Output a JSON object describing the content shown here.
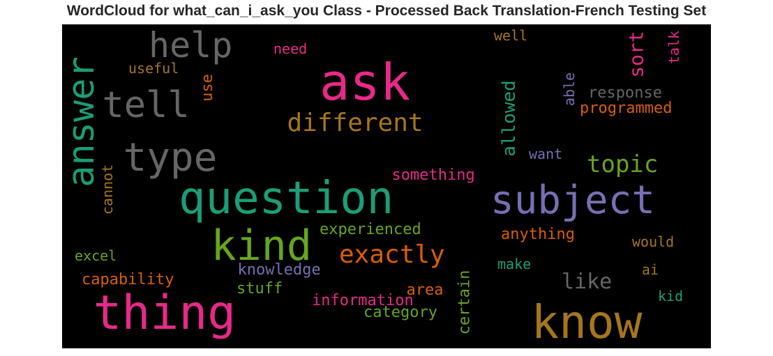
{
  "chart_data": {
    "type": "wordcloud",
    "title": "WordCloud for what_can_i_ask_you Class - Processed Back Translation-French Testing Set",
    "background": "#000000",
    "palette": "Dark2",
    "words": [
      {
        "text": "ask",
        "color": "#e7298a"
      },
      {
        "text": "question",
        "color": "#1b9e77"
      },
      {
        "text": "subject",
        "color": "#7570b3"
      },
      {
        "text": "thing",
        "color": "#e7298a"
      },
      {
        "text": "know",
        "color": "#a6761d"
      },
      {
        "text": "kind",
        "color": "#66a61e"
      },
      {
        "text": "answer",
        "color": "#1b9e77",
        "vertical": true
      },
      {
        "text": "type",
        "color": "#666666"
      },
      {
        "text": "tell",
        "color": "#666666"
      },
      {
        "text": "help",
        "color": "#666666"
      },
      {
        "text": "different",
        "color": "#a6761d"
      },
      {
        "text": "exactly",
        "color": "#d95f02"
      },
      {
        "text": "topic",
        "color": "#66a61e"
      },
      {
        "text": "like",
        "color": "#666666"
      },
      {
        "text": "allowed",
        "color": "#1b9e77",
        "vertical": true
      },
      {
        "text": "sort",
        "color": "#e7298a",
        "vertical": true
      },
      {
        "text": "certain",
        "color": "#66a61e",
        "vertical": true
      },
      {
        "text": "programmed",
        "color": "#d95f02"
      },
      {
        "text": "response",
        "color": "#666666"
      },
      {
        "text": "anything",
        "color": "#d95f02"
      },
      {
        "text": "something",
        "color": "#e7298a"
      },
      {
        "text": "experienced",
        "color": "#66a61e"
      },
      {
        "text": "knowledge",
        "color": "#7570b3"
      },
      {
        "text": "information",
        "color": "#e7298a"
      },
      {
        "text": "capability",
        "color": "#d95f02"
      },
      {
        "text": "category",
        "color": "#66a61e"
      },
      {
        "text": "use",
        "color": "#d95f02",
        "vertical": true
      },
      {
        "text": "useful",
        "color": "#a6761d"
      },
      {
        "text": "need",
        "color": "#e7298a"
      },
      {
        "text": "well",
        "color": "#a6761d"
      },
      {
        "text": "want",
        "color": "#7570b3"
      },
      {
        "text": "cannot",
        "color": "#a6761d",
        "vertical": true
      },
      {
        "text": "able",
        "color": "#7570b3",
        "vertical": true
      },
      {
        "text": "talk",
        "color": "#e7298a",
        "vertical": true
      },
      {
        "text": "would",
        "color": "#a6761d"
      },
      {
        "text": "make",
        "color": "#1b9e77"
      },
      {
        "text": "ai",
        "color": "#a6761d"
      },
      {
        "text": "kid",
        "color": "#1b9e77"
      },
      {
        "text": "area",
        "color": "#d95f02"
      },
      {
        "text": "stuff",
        "color": "#66a61e"
      },
      {
        "text": "excel",
        "color": "#66a61e"
      }
    ]
  }
}
